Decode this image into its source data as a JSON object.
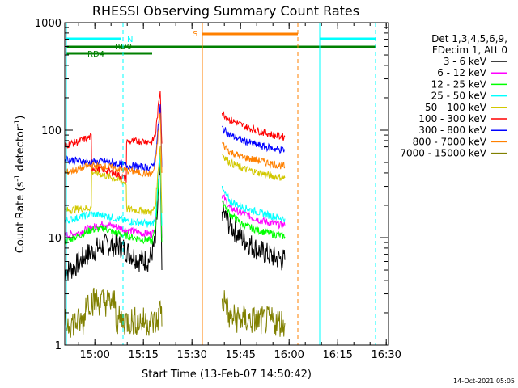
{
  "chart_data": {
    "type": "line",
    "title": "RHESSI Observing Summary Count Rates",
    "xlabel": "Start Time (13-Feb-07 14:50:42)",
    "ylabel_main": "Count Rate (s",
    "ylabel_sup1": "-1",
    "ylabel_mid": " detector",
    "ylabel_sup2": "-1",
    "ylabel_end": ")",
    "y_scale": "log",
    "ylim": [
      1,
      1000
    ],
    "xlim": [
      "14:50:42",
      "16:30:42"
    ],
    "x_ticks": [
      "15:00",
      "15:15",
      "15:30",
      "15:45",
      "16:00",
      "16:15",
      "16:30"
    ],
    "y_ticks": [
      "1",
      "10",
      "100",
      "1000"
    ],
    "legend_header": [
      "Det 1,3,4,5,6,9,",
      "FDecim 1, Att 0"
    ],
    "legend_position": "top-right",
    "timestamp": "14-Oct-2021 05:05",
    "flags": [
      {
        "label": "N",
        "color": "#00ffff"
      },
      {
        "label": "RD0",
        "color": "#008000"
      },
      {
        "label": "RD4",
        "color": "#008000"
      },
      {
        "label": "S",
        "color": "#ff8000"
      }
    ],
    "series": [
      {
        "name": "3 - 6 keV",
        "color": "#000000",
        "points": [
          [
            0,
            4.8
          ],
          [
            3,
            5.3
          ],
          [
            6,
            6.6
          ],
          [
            10,
            8.0
          ],
          [
            13,
            8.6
          ],
          [
            17,
            8.4
          ],
          [
            20,
            7.2
          ],
          [
            23,
            6.2
          ],
          [
            26,
            6.1
          ],
          [
            28,
            9
          ],
          [
            29.5,
            45
          ],
          [
            30,
            5
          ]
        ],
        "points2": [
          [
            48.6,
            18
          ],
          [
            51,
            13
          ],
          [
            55,
            9.8
          ],
          [
            60,
            7.6
          ],
          [
            65,
            6.5
          ],
          [
            68,
            6.2
          ]
        ]
      },
      {
        "name": "6 - 12 keV",
        "color": "#ff00ff",
        "points": [
          [
            0,
            10.5
          ],
          [
            4,
            11
          ],
          [
            8,
            12.3
          ],
          [
            12,
            13.5
          ],
          [
            16,
            12.6
          ],
          [
            19,
            11.8
          ],
          [
            24,
            11
          ],
          [
            27,
            10.8
          ],
          [
            28,
            13
          ],
          [
            29.5,
            60
          ],
          [
            30,
            10
          ]
        ],
        "points2": [
          [
            48.6,
            25
          ],
          [
            51,
            19
          ],
          [
            55,
            16.8
          ],
          [
            60,
            14.6
          ],
          [
            65,
            13.4
          ],
          [
            68,
            13.0
          ]
        ]
      },
      {
        "name": "12 - 25 keV",
        "color": "#00ff00",
        "points": [
          [
            0,
            9.2
          ],
          [
            4,
            10.3
          ],
          [
            8,
            11.8
          ],
          [
            12,
            12.2
          ],
          [
            16,
            11
          ],
          [
            19,
            10.4
          ],
          [
            24,
            9.6
          ],
          [
            27,
            9.3
          ],
          [
            28,
            12
          ],
          [
            29.5,
            58
          ],
          [
            30,
            9
          ]
        ],
        "points2": [
          [
            48.6,
            22
          ],
          [
            51,
            16.5
          ],
          [
            55,
            13.2
          ],
          [
            60,
            11.6
          ],
          [
            65,
            10.7
          ],
          [
            68,
            10.2
          ]
        ]
      },
      {
        "name": "25 - 50 keV",
        "color": "#00ffff",
        "points": [
          [
            0,
            14.3
          ],
          [
            4,
            15.3
          ],
          [
            8,
            16.5
          ],
          [
            12,
            16.1
          ],
          [
            16,
            15.1
          ],
          [
            19,
            14.3
          ],
          [
            24,
            13.8
          ],
          [
            27,
            13.1
          ],
          [
            28,
            15
          ],
          [
            29.5,
            62
          ],
          [
            30,
            13
          ]
        ],
        "points2": [
          [
            48.6,
            28
          ],
          [
            51,
            22
          ],
          [
            55,
            19.3
          ],
          [
            60,
            17.1
          ],
          [
            65,
            15.6
          ],
          [
            68,
            15.0
          ]
        ]
      },
      {
        "name": "50 - 100 keV",
        "color": "#d2c800",
        "points": [
          [
            0,
            17.8
          ],
          [
            4,
            18.5
          ],
          [
            8.2,
            19
          ],
          [
            8.3,
            41
          ],
          [
            12,
            38.5
          ],
          [
            16,
            35
          ],
          [
            19,
            32
          ],
          [
            19.1,
            18.5
          ],
          [
            24,
            17.8
          ],
          [
            27,
            17.2
          ],
          [
            28,
            20
          ],
          [
            29.5,
            75
          ],
          [
            30,
            17
          ]
        ],
        "points2": [
          [
            48.6,
            60
          ],
          [
            51,
            50
          ],
          [
            55,
            44
          ],
          [
            60,
            40
          ],
          [
            65,
            37
          ],
          [
            68,
            36
          ]
        ]
      },
      {
        "name": "100 - 300 keV",
        "color": "#ff0000",
        "points": [
          [
            0,
            72
          ],
          [
            4,
            78
          ],
          [
            8.2,
            87
          ],
          [
            8.3,
            45
          ],
          [
            12,
            43
          ],
          [
            16,
            39
          ],
          [
            19,
            35
          ],
          [
            19.1,
            78
          ],
          [
            24,
            79
          ],
          [
            27,
            78
          ],
          [
            28,
            90
          ],
          [
            29.5,
            240
          ],
          [
            30,
            75
          ]
        ],
        "points2": [
          [
            48.6,
            145
          ],
          [
            51,
            125
          ],
          [
            55,
            110
          ],
          [
            60,
            98
          ],
          [
            65,
            89
          ],
          [
            68,
            86
          ]
        ]
      },
      {
        "name": "300 - 800 keV",
        "color": "#0000ff",
        "points": [
          [
            0,
            54
          ],
          [
            4,
            52
          ],
          [
            8,
            50
          ],
          [
            12,
            51
          ],
          [
            16,
            49
          ],
          [
            19,
            47
          ],
          [
            24,
            45
          ],
          [
            27,
            45
          ],
          [
            28,
            55
          ],
          [
            29.5,
            170
          ],
          [
            30,
            45
          ]
        ],
        "points2": [
          [
            48.6,
            105
          ],
          [
            51,
            90
          ],
          [
            55,
            80
          ],
          [
            60,
            72
          ],
          [
            65,
            67
          ],
          [
            68,
            65
          ]
        ]
      },
      {
        "name": "800 - 7000 keV",
        "color": "#ff8000",
        "points": [
          [
            0,
            40
          ],
          [
            4,
            43
          ],
          [
            8,
            47
          ],
          [
            12,
            46
          ],
          [
            16,
            44
          ],
          [
            19,
            42
          ],
          [
            24,
            40
          ],
          [
            27,
            39
          ],
          [
            28,
            48
          ],
          [
            29.5,
            150
          ],
          [
            30,
            40
          ]
        ],
        "points2": [
          [
            48.6,
            75
          ],
          [
            51,
            63
          ],
          [
            55,
            56
          ],
          [
            60,
            52
          ],
          [
            65,
            48
          ],
          [
            68,
            46
          ]
        ]
      },
      {
        "name": "7000 - 15000 keV",
        "color": "#808000",
        "points": [
          [
            0,
            1.6
          ],
          [
            6,
            1.65
          ],
          [
            6.5,
            2.6
          ],
          [
            15.5,
            2.5
          ],
          [
            16,
            1.7
          ],
          [
            26,
            1.65
          ],
          [
            28.5,
            1.6
          ],
          [
            29.8,
            2.5
          ],
          [
            30,
            1.5
          ]
        ],
        "points2": [
          [
            48.6,
            2.6
          ],
          [
            50,
            2.5
          ],
          [
            50.5,
            1.8
          ],
          [
            58,
            1.7
          ],
          [
            66,
            1.65
          ],
          [
            68,
            1.6
          ]
        ]
      }
    ]
  }
}
